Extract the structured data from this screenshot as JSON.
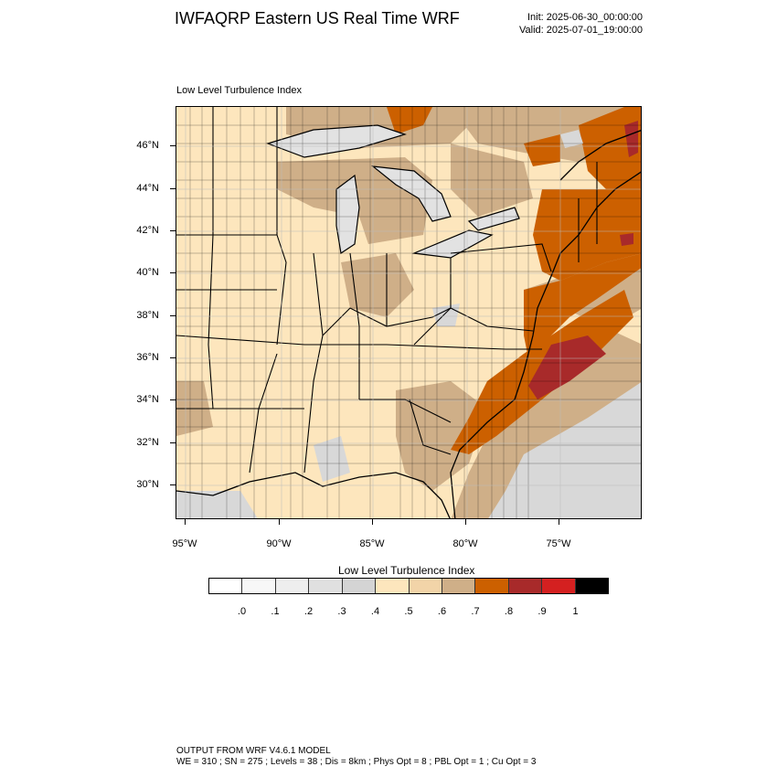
{
  "header": {
    "title": "IWFAQRP Eastern US Real Time WRF",
    "init": "Init: 2025-06-30_00:00:00",
    "valid": "Valid: 2025-07-01_19:00:00"
  },
  "plot": {
    "title": "Low Level Turbulence Index"
  },
  "axes": {
    "lat_labels": [
      "46°N",
      "44°N",
      "42°N",
      "40°N",
      "38°N",
      "36°N",
      "34°N",
      "32°N",
      "30°N"
    ],
    "lon_labels": [
      "95°W",
      "90°W",
      "85°W",
      "80°W",
      "75°W"
    ]
  },
  "colorbar": {
    "title": "Low Level Turbulence Index",
    "labels": [
      ".0",
      ".1",
      ".2",
      ".3",
      ".4",
      ".5",
      ".6",
      ".7",
      ".8",
      ".9",
      "1"
    ],
    "colors": [
      "#ffffff",
      "#f7f7f7",
      "#eeeeee",
      "#e0e0e0",
      "#d4d4d4",
      "#fde6bd",
      "#f2d4a8",
      "#cfaf88",
      "#cc6000",
      "#a82a2a",
      "#d42020",
      "#000000"
    ]
  },
  "map": {
    "land_color": "#fde6bd",
    "low_color": "#cfaf88",
    "high_color": "#cc6000",
    "max_color": "#a82a2a",
    "gray_color": "#d8d8d8",
    "water_color": "#e2e2e2"
  },
  "footer": {
    "line1": "OUTPUT FROM WRF V4.6.1 MODEL",
    "line2": "WE = 310 ; SN = 275 ; Levels = 38 ; Dis = 8km ; Phys Opt = 8 ; PBL Opt = 1 ; Cu Opt = 3"
  }
}
